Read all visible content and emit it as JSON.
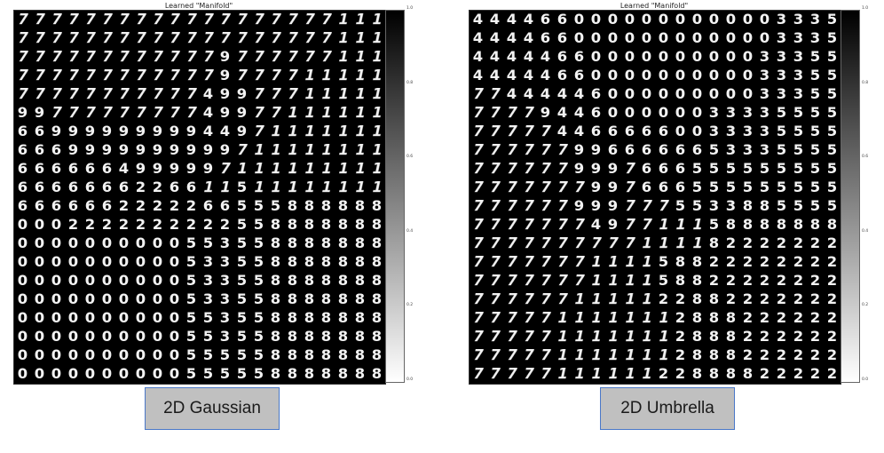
{
  "colorbar_ticks": [
    "1.0",
    "0.8",
    "0.6",
    "0.4",
    "0.2",
    "0.0"
  ],
  "panels": [
    {
      "title": "Learned \"Manifold\"",
      "caption": "2D Gaussian",
      "grid": [
        "7777777777777777777111",
        "7777777777777777777111",
        "7777777777779777777111",
        "7777777777779777711111",
        "7777777777749977711111",
        "9977777777749977111111",
        "6699999999944971111111",
        "6669999999999711111111",
        "6666664999997111111111",
        "6666666226611511111111",
        "6666662222266555888888",
        "0002222222222558888888",
        "0000000000553558888888",
        "0000000000533558888888",
        "0000000000533558888888",
        "0000000000533558888888",
        "0000000000553558888888",
        "0000000000553558888888",
        "0000000000555558888888",
        "0000000000555558888888"
      ]
    },
    {
      "title": "Learned \"Manifold\"",
      "caption": "2D Umbrella",
      "grid": [
        "4444660000000000003335",
        "4444660000000000003335",
        "4444466000000000033355",
        "4444466000000000033355",
        "7744444600000000033355",
        "7777944600000033335555",
        "7777744666660033335555",
        "7777779966666653335555",
        "7777779997666555555555",
        "7777777997666555555555",
        "7777779997775533885555",
        "7777777497711158888888",
        "7777777777111182222222",
        "7777777111158822222222",
        "7777777111158822222222",
        "7777771111122882222222",
        "7777711111112888222222",
        "7777711111112888222222",
        "7777711111112888222222",
        "7777711111122888822222"
      ]
    }
  ]
}
